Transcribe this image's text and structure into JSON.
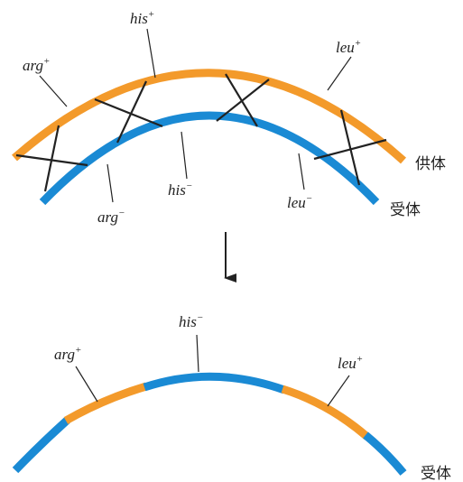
{
  "colors": {
    "donor": "#f39a2b",
    "recipient": "#1a8ad4",
    "line": "#222222"
  },
  "top": {
    "labels": {
      "his_plus": {
        "base": "his",
        "sup": "+"
      },
      "arg_plus": {
        "base": "arg",
        "sup": "+"
      },
      "leu_plus": {
        "base": "leu",
        "sup": "+"
      },
      "his_minus": {
        "base": "his",
        "sup": "−"
      },
      "arg_minus": {
        "base": "arg",
        "sup": "−"
      },
      "leu_minus": {
        "base": "leu",
        "sup": "−"
      }
    },
    "donor_label": "供体",
    "recipient_label": "受体"
  },
  "bottom": {
    "labels": {
      "his_minus": {
        "base": "his",
        "sup": "−"
      },
      "arg_plus": {
        "base": "arg",
        "sup": "+"
      },
      "leu_plus": {
        "base": "leu",
        "sup": "+"
      }
    },
    "recipient_label": "受体"
  },
  "arrow_icon": "down-arrow-icon"
}
